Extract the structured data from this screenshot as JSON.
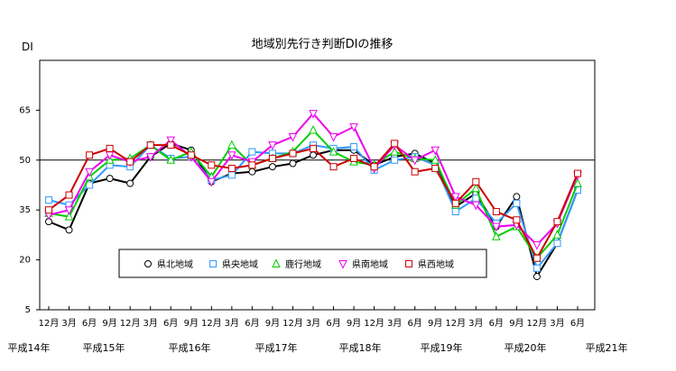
{
  "chart_data": {
    "type": "line",
    "title": "地域別先行き判断DIの推移",
    "ylabel": "DI",
    "ylim": [
      5,
      80
    ],
    "yticks": [
      5,
      20,
      35,
      50,
      65
    ],
    "reference_line": 50,
    "grid": false,
    "legend_position": "bottom-center",
    "x": [
      "12月",
      "3月",
      "6月",
      "9月",
      "12月",
      "3月",
      "6月",
      "9月",
      "12月",
      "3月",
      "6月",
      "9月",
      "12月",
      "3月",
      "6月",
      "9月",
      "12月",
      "3月",
      "6月",
      "9月",
      "12月",
      "3月",
      "6月",
      "9月",
      "12月",
      "3月",
      "6月"
    ],
    "year_labels": [
      "平成14年",
      "平成15年",
      "平成16年",
      "平成17年",
      "平成18年",
      "平成19年",
      "平成20年",
      "平成21年"
    ],
    "series": [
      {
        "name": "県北地域",
        "color": "#000000",
        "marker": "circle",
        "values": [
          31.5,
          29,
          43,
          44.5,
          43,
          51,
          55,
          53,
          43.5,
          46,
          46.5,
          48,
          49,
          51.5,
          53,
          53,
          48.5,
          51,
          52,
          49,
          36,
          40,
          30,
          39,
          15,
          25,
          41
        ]
      },
      {
        "name": "県央地域",
        "color": "#3399ff",
        "marker": "square",
        "values": [
          38,
          36.5,
          42.5,
          48.5,
          48,
          54.5,
          50.5,
          51,
          44,
          45.5,
          52.5,
          52,
          52,
          54.5,
          53.5,
          54,
          47,
          50,
          51,
          48.5,
          34.5,
          38.5,
          31,
          37,
          17.5,
          25,
          41
        ]
      },
      {
        "name": "鹿行地域",
        "color": "#00cc00",
        "marker": "triangle",
        "values": [
          34,
          33,
          45,
          50,
          50.5,
          54.5,
          50,
          52.5,
          45,
          54.5,
          48.5,
          50.5,
          52.5,
          59,
          52.5,
          49.5,
          48.5,
          52.5,
          50.5,
          50,
          36.5,
          41.5,
          27,
          30,
          20.5,
          27.5,
          43
        ]
      },
      {
        "name": "県南地域",
        "color": "#ee00ee",
        "marker": "triangle-down",
        "values": [
          33.5,
          35,
          46.5,
          51.5,
          49.5,
          51,
          56,
          51,
          43.5,
          51.5,
          49.5,
          54.5,
          57,
          64,
          57,
          60,
          47.5,
          54.5,
          50,
          53,
          39,
          36.5,
          30,
          30.5,
          24.5,
          31,
          45.5
        ]
      },
      {
        "name": "県西地域",
        "color": "#cc0000",
        "marker": "square",
        "values": [
          35,
          39.5,
          51.5,
          53.5,
          49.5,
          54.5,
          54.5,
          51.5,
          48.5,
          47.5,
          48.5,
          50.5,
          52,
          53.5,
          48,
          50.5,
          48,
          55,
          46.5,
          47.5,
          37,
          43.5,
          34.5,
          32,
          20.5,
          31.5,
          46
        ]
      }
    ]
  }
}
